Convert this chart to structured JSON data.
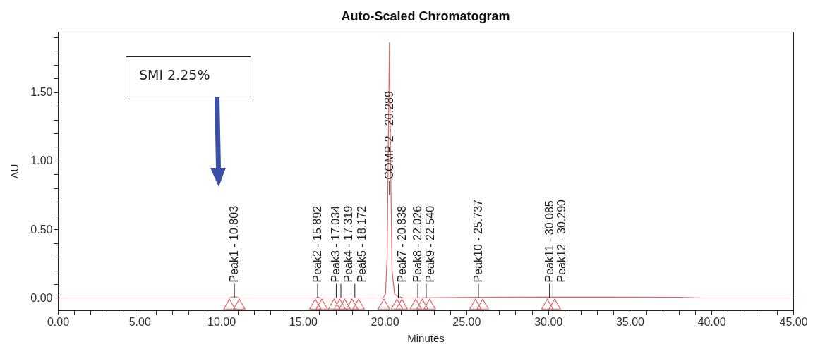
{
  "chart_data": {
    "type": "line",
    "title": "Auto-Scaled Chromatogram",
    "xlabel": "Minutes",
    "ylabel": "AU",
    "xlim": [
      0,
      45
    ],
    "ylim": [
      -0.09,
      1.94
    ],
    "xticks": [
      {
        "value": 0,
        "label": "0.00"
      },
      {
        "value": 1,
        "label": null
      },
      {
        "value": 2,
        "label": null
      },
      {
        "value": 3,
        "label": null
      },
      {
        "value": 4,
        "label": null
      },
      {
        "value": 5,
        "label": "5.00"
      },
      {
        "value": 6,
        "label": null
      },
      {
        "value": 7,
        "label": null
      },
      {
        "value": 8,
        "label": null
      },
      {
        "value": 9,
        "label": null
      },
      {
        "value": 10,
        "label": "10.00"
      },
      {
        "value": 11,
        "label": null
      },
      {
        "value": 12,
        "label": null
      },
      {
        "value": 13,
        "label": null
      },
      {
        "value": 14,
        "label": null
      },
      {
        "value": 15,
        "label": "15.00"
      },
      {
        "value": 16,
        "label": null
      },
      {
        "value": 17,
        "label": null
      },
      {
        "value": 18,
        "label": null
      },
      {
        "value": 19,
        "label": null
      },
      {
        "value": 20,
        "label": "20.00"
      },
      {
        "value": 21,
        "label": null
      },
      {
        "value": 22,
        "label": null
      },
      {
        "value": 23,
        "label": null
      },
      {
        "value": 24,
        "label": null
      },
      {
        "value": 25,
        "label": "25.00"
      },
      {
        "value": 26,
        "label": null
      },
      {
        "value": 27,
        "label": null
      },
      {
        "value": 28,
        "label": null
      },
      {
        "value": 29,
        "label": null
      },
      {
        "value": 30,
        "label": "30.00"
      },
      {
        "value": 31,
        "label": null
      },
      {
        "value": 32,
        "label": null
      },
      {
        "value": 33,
        "label": null
      },
      {
        "value": 34,
        "label": null
      },
      {
        "value": 35,
        "label": "35.00"
      },
      {
        "value": 36,
        "label": null
      },
      {
        "value": 37,
        "label": null
      },
      {
        "value": 38,
        "label": null
      },
      {
        "value": 39,
        "label": null
      },
      {
        "value": 40,
        "label": "40.00"
      },
      {
        "value": 41,
        "label": null
      },
      {
        "value": 42,
        "label": null
      },
      {
        "value": 43,
        "label": null
      },
      {
        "value": 44,
        "label": null
      },
      {
        "value": 45,
        "label": "45.00"
      }
    ],
    "yticks": [
      {
        "value": 0,
        "label": "0.00"
      },
      {
        "value": 0.1,
        "label": null
      },
      {
        "value": 0.2,
        "label": null
      },
      {
        "value": 0.3,
        "label": null
      },
      {
        "value": 0.4,
        "label": null
      },
      {
        "value": 0.5,
        "label": "0.50"
      },
      {
        "value": 0.6,
        "label": null
      },
      {
        "value": 0.7,
        "label": null
      },
      {
        "value": 0.8,
        "label": null
      },
      {
        "value": 0.9,
        "label": null
      },
      {
        "value": 1.0,
        "label": "1.00"
      },
      {
        "value": 1.1,
        "label": null
      },
      {
        "value": 1.2,
        "label": null
      },
      {
        "value": 1.3,
        "label": null
      },
      {
        "value": 1.4,
        "label": null
      },
      {
        "value": 1.5,
        "label": "1.50"
      },
      {
        "value": 1.6,
        "label": null
      },
      {
        "value": 1.7,
        "label": null
      },
      {
        "value": 1.8,
        "label": null
      },
      {
        "value": 1.9,
        "label": null
      }
    ],
    "series": [
      {
        "color": "#e06666",
        "marker": "none",
        "x": [
          0,
          10.5,
          10.8,
          11.1,
          15.8,
          15.9,
          16.1,
          19.9,
          20.05,
          20.15,
          20.22,
          20.289,
          20.36,
          20.45,
          20.6,
          20.8,
          21.2,
          25.7,
          30,
          34,
          38,
          39.5,
          45
        ],
        "values": [
          0,
          0,
          0.01,
          0,
          0,
          0.005,
          0,
          0,
          0.03,
          0.3,
          1.1,
          1.86,
          1.0,
          0.2,
          0.03,
          0.01,
          0,
          0.004,
          0.006,
          0.006,
          0.005,
          0,
          0
        ]
      },
      {
        "type": "scatter",
        "color": "#e06666",
        "marker": "triangle",
        "x": [
          10.5,
          11.1,
          15.75,
          16.15,
          16.9,
          17.25,
          17.55,
          18.0,
          18.4,
          19.95,
          20.75,
          21.05,
          21.9,
          22.3,
          22.75,
          25.55,
          26.0,
          29.95,
          30.4
        ],
        "values": [
          -0.045,
          -0.045,
          -0.045,
          -0.045,
          -0.045,
          -0.045,
          -0.045,
          -0.045,
          -0.045,
          -0.045,
          -0.045,
          -0.045,
          -0.045,
          -0.045,
          -0.045,
          -0.045,
          -0.045,
          -0.045,
          -0.045
        ]
      }
    ],
    "annotations": [
      {
        "text": "Peak1 - 10.803",
        "x": 10.803,
        "y": 0
      },
      {
        "text": "Peak2 - 15.892",
        "x": 15.892,
        "y": 0
      },
      {
        "text": "Peak3 - 17.034",
        "x": 17.034,
        "y": 0
      },
      {
        "text": "Peak4 - 17.319",
        "x": 17.319,
        "y": 0
      },
      {
        "text": "Peak5 - 18.172",
        "x": 18.172,
        "y": 0
      },
      {
        "text": "COMP-2 - 20.289",
        "x": 20.289,
        "y": 0.75
      },
      {
        "text": "Peak7 - 20.838",
        "x": 20.838,
        "y": 0
      },
      {
        "text": "Peak8 - 22.026",
        "x": 22.026,
        "y": 0
      },
      {
        "text": "Peak9 - 22.540",
        "x": 22.54,
        "y": 0
      },
      {
        "text": "Peak10 - 25.737",
        "x": 25.737,
        "y": 0
      },
      {
        "text": "Peak11 - 30.085",
        "x": 30.085,
        "y": 0
      },
      {
        "text": "Peak12 - 30.290",
        "x": 30.29,
        "y": 0
      },
      "SMI 2.25%"
    ]
  }
}
